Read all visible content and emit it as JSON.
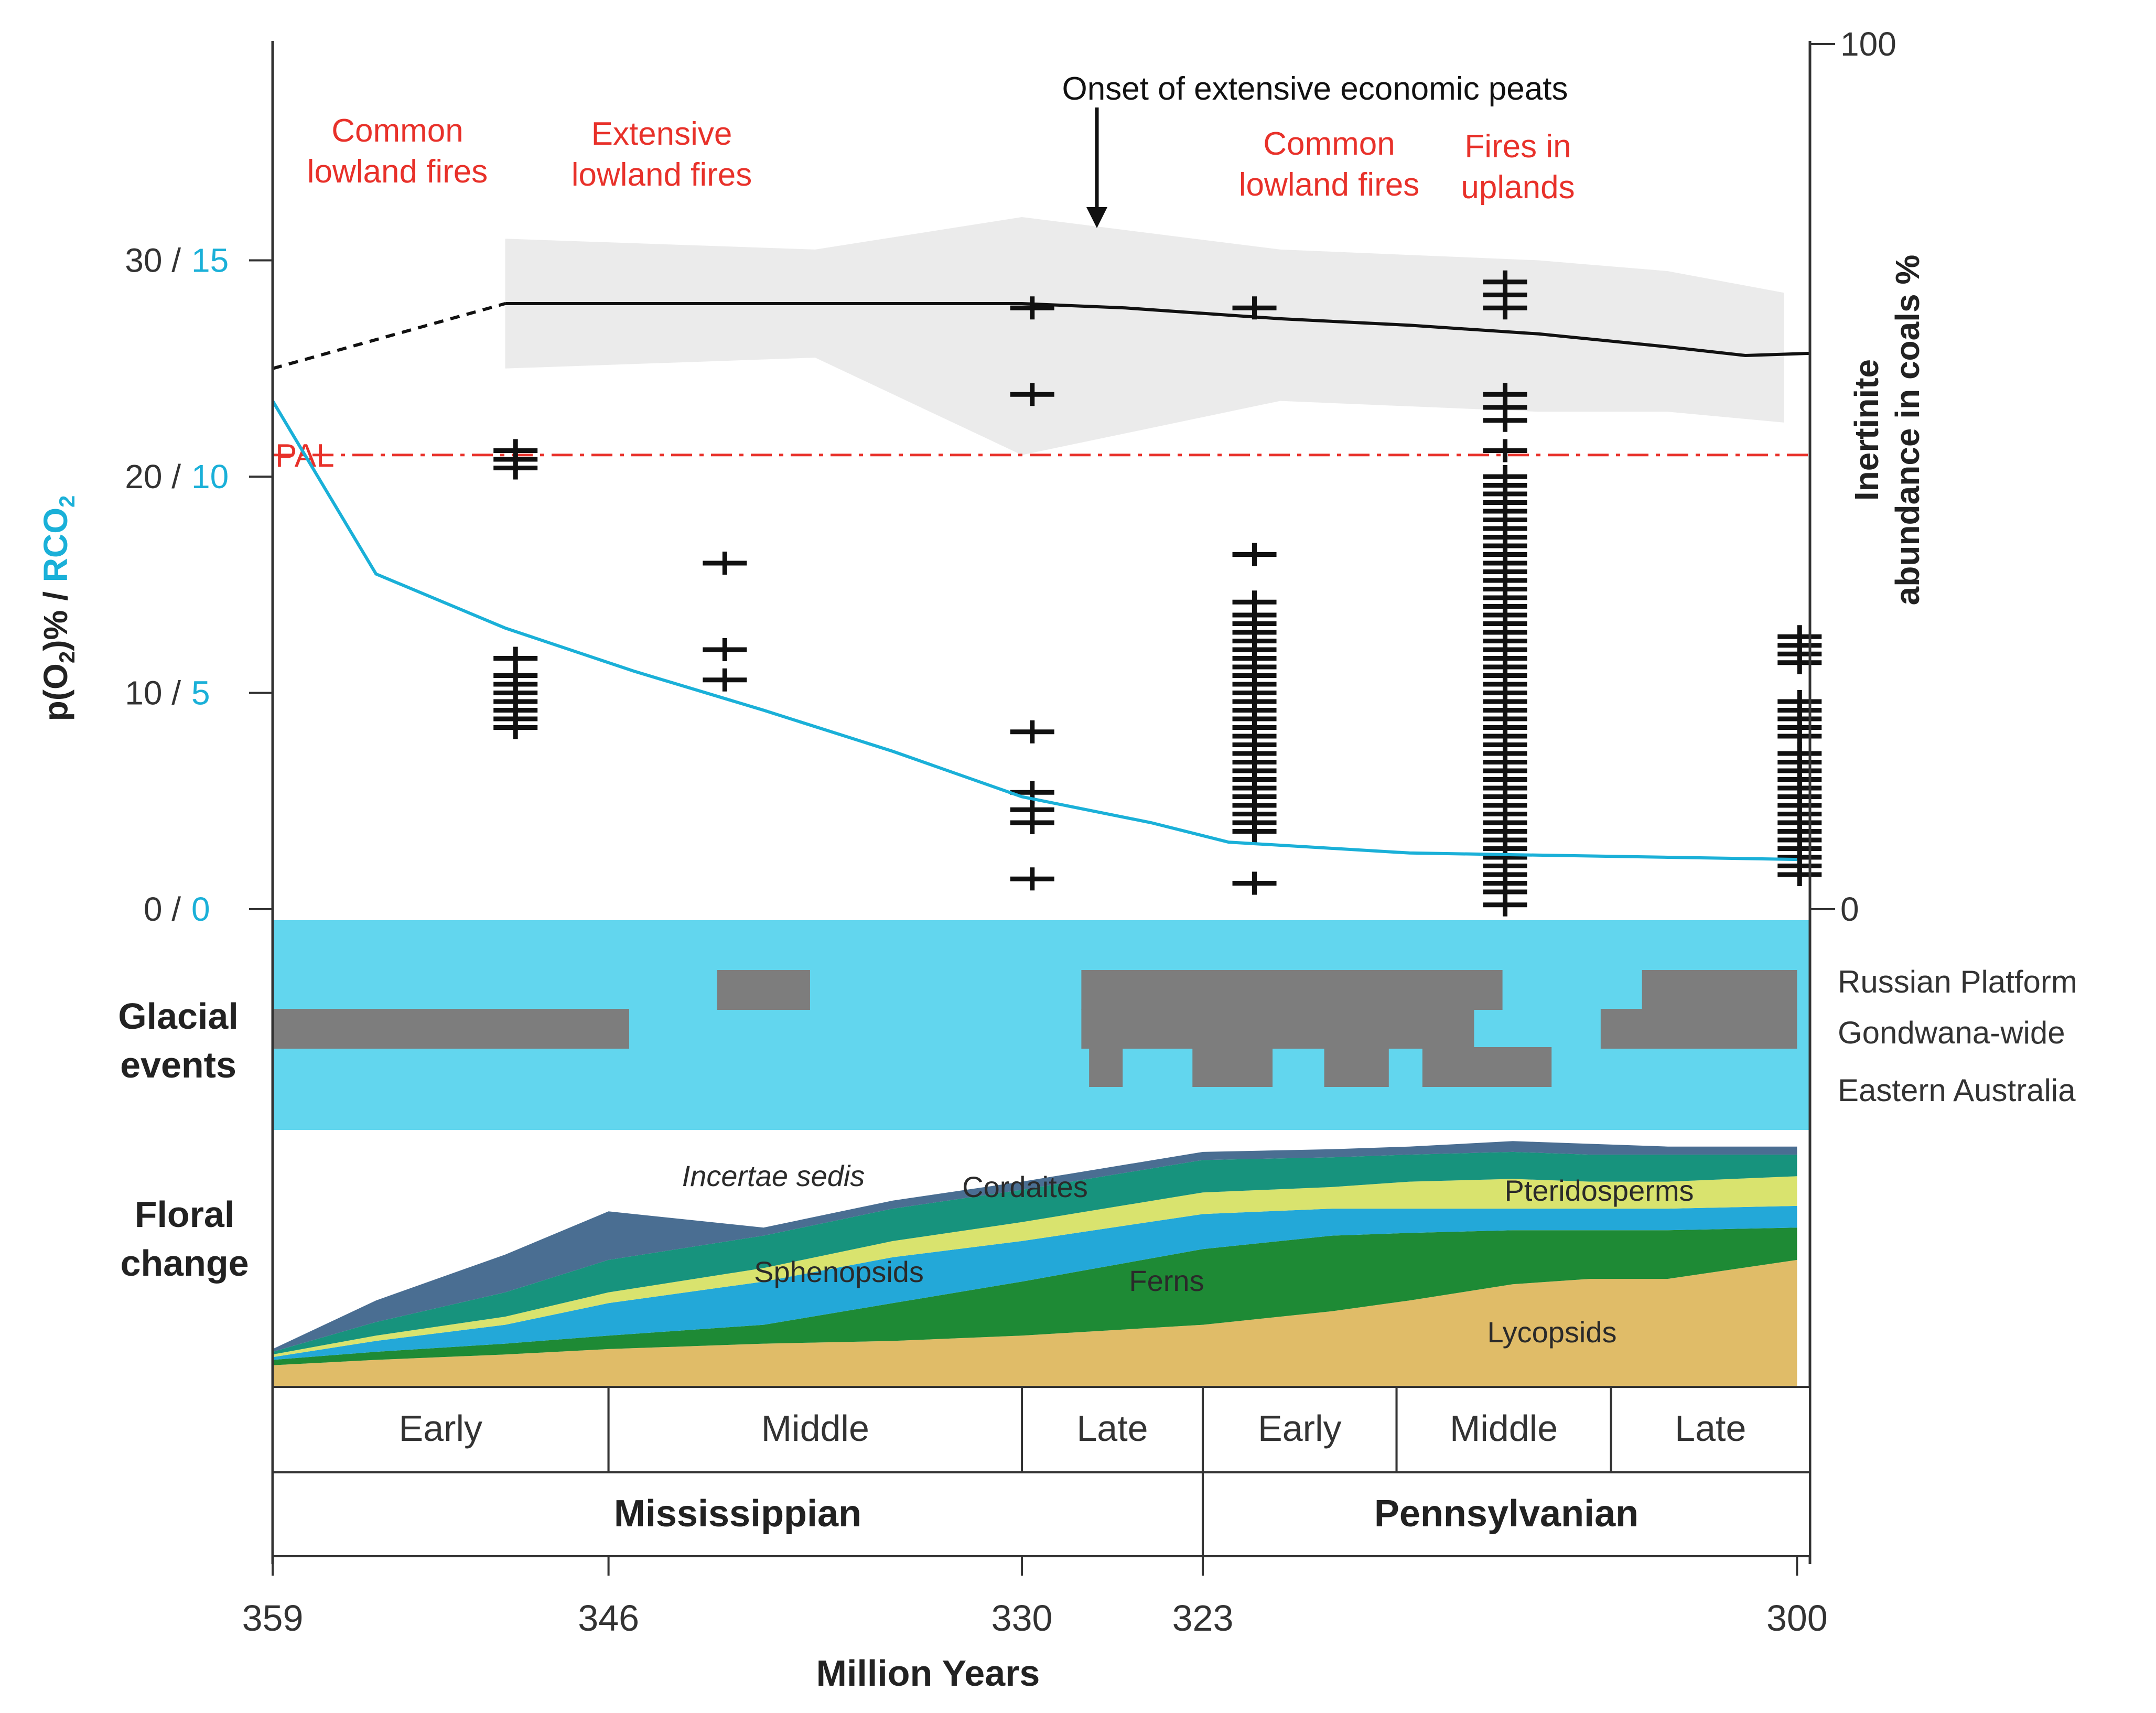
{
  "chart_data": {
    "type": "line",
    "xlabel": "Million Years",
    "x_ticks": [
      359,
      346,
      330,
      323,
      300
    ],
    "x_tick_labels": [
      "359",
      "346",
      "330",
      "323",
      "300"
    ],
    "xlim": [
      359,
      299.5
    ],
    "left_axis": {
      "label_main": "p(O",
      "label_main_sub": "2",
      "label_mid": ")% / ",
      "label_co2": "RCO",
      "label_co2_sub": "2",
      "ylim": [
        0,
        40
      ],
      "ticks": [
        {
          "o2": "0 /",
          "co2": "0",
          "value": 0
        },
        {
          "o2": "10 /",
          "co2": "5",
          "value": 10
        },
        {
          "o2": "20 /",
          "co2": "10",
          "value": 20
        },
        {
          "o2": "30 /",
          "co2": "15",
          "value": 30
        }
      ]
    },
    "right_axis": {
      "label_line1": "Inertinite",
      "label_line2": "abundance in coals %",
      "ylim": [
        0,
        100
      ],
      "ticks": [
        {
          "label": "0",
          "value": 0
        },
        {
          "label": "100",
          "value": 100
        }
      ]
    },
    "colors": {
      "o2": "#111111",
      "o2_band": "#ebebeb",
      "co2": "#1ab0d8",
      "pal": "#e8312a",
      "fire_text": "#e8312a",
      "glacial_bg": "#62d6ee",
      "glacial_bar": "#7d7d7d",
      "inertinite": "#111111"
    },
    "pal": {
      "label": "PAL",
      "value_o2": 21
    },
    "o2_series": {
      "name": "p(O2)%",
      "dashed": {
        "x": [
          359,
          350
        ],
        "y": [
          25,
          28
        ]
      },
      "solid": {
        "x": [
          350,
          340,
          330,
          326,
          320,
          315,
          310,
          305,
          302,
          299.5
        ],
        "y": [
          28,
          28,
          28,
          27.8,
          27.3,
          27,
          26.6,
          26,
          25.6,
          25.7
        ]
      },
      "band_upper": {
        "x": [
          350,
          338,
          330,
          320,
          310,
          305,
          300.5
        ],
        "y": [
          31,
          30.5,
          32,
          30.5,
          30,
          29.5,
          28.5
        ]
      },
      "band_lower": {
        "x": [
          300.5,
          305,
          310,
          320,
          330,
          338,
          350
        ],
        "y": [
          22.5,
          23,
          23,
          23.5,
          21,
          25.5,
          25
        ]
      }
    },
    "co2_series": {
      "name": "RCO2",
      "x": [
        359,
        355,
        350,
        345,
        340,
        335,
        330,
        325,
        322,
        315,
        310,
        305,
        300
      ],
      "y": [
        23.5,
        15.5,
        13,
        11,
        9.2,
        7.3,
        5.2,
        4,
        3.1,
        2.6,
        2.5,
        2.4,
        2.3
      ]
    },
    "inertinite_series": {
      "name": "Inertinite abundance in coals %",
      "columns": [
        {
          "x": 349.6,
          "values": [
            51,
            52,
            53,
            29,
            27,
            26,
            25,
            24,
            23,
            22,
            21
          ]
        },
        {
          "x": 341.5,
          "values": [
            40,
            30,
            26.5
          ]
        },
        {
          "x": 329.6,
          "values": [
            69.5,
            59.5,
            20.5,
            13.5,
            11.5,
            10,
            3.5
          ]
        },
        {
          "x": 321.0,
          "values": [
            69.5,
            41,
            35.5,
            34,
            33,
            32,
            31,
            30,
            29,
            28,
            27,
            26,
            25,
            24,
            23,
            22,
            21,
            20,
            19,
            18,
            17,
            16,
            15,
            14,
            13,
            12,
            11,
            10,
            9,
            3
          ]
        },
        {
          "x": 311.3,
          "values": [
            72.5,
            71,
            69.5,
            59.5,
            58,
            56.5,
            53,
            50,
            49,
            48,
            47,
            46,
            45,
            44,
            43,
            42,
            41,
            40,
            39,
            38,
            37,
            36,
            35,
            34,
            33,
            32,
            31,
            30,
            29,
            28,
            27,
            26,
            25,
            24,
            23,
            22,
            21,
            20,
            19,
            18,
            17,
            16,
            15,
            14,
            13,
            12,
            11,
            10,
            9,
            8,
            7,
            6,
            5,
            4,
            3,
            2,
            0.5
          ]
        },
        {
          "x": 299.9,
          "values": [
            31.5,
            30.5,
            29.5,
            28.5,
            24,
            23,
            22,
            21,
            20,
            18,
            17,
            16,
            15,
            14,
            13,
            12,
            11,
            10,
            9,
            8,
            7,
            6,
            5,
            4
          ]
        }
      ]
    },
    "annotations": [
      {
        "key": "fires1",
        "lines": [
          "Common",
          "lowland fires"
        ],
        "color": "red"
      },
      {
        "key": "fires2",
        "lines": [
          "Extensive",
          "lowland fires"
        ],
        "color": "red"
      },
      {
        "key": "peats",
        "lines": [
          "Onset of extensive economic peats"
        ],
        "color": "black",
        "arrow_x": 327.5
      },
      {
        "key": "fires3",
        "lines": [
          "Common",
          "lowland fires"
        ],
        "color": "red"
      },
      {
        "key": "fires4",
        "lines": [
          "Fires in",
          "uplands"
        ],
        "color": "red"
      }
    ],
    "glacial": {
      "title_line1": "Glacial",
      "title_line2": "events",
      "rows": [
        "Russian Platform",
        "Gondwana-wide",
        "Eastern Australia"
      ],
      "bars": [
        {
          "row": "Russian Platform",
          "from": 341.8,
          "to": 338.2
        },
        {
          "row": "Russian Platform",
          "from": 327.7,
          "to": 311.4
        },
        {
          "row": "Russian Platform",
          "from": 306.0,
          "to": 300.0
        },
        {
          "row": "Gondwana-wide",
          "from": 359.0,
          "to": 345.2
        },
        {
          "row": "Gondwana-wide",
          "from": 327.7,
          "to": 312.5
        },
        {
          "row": "Gondwana-wide",
          "from": 307.6,
          "to": 300.0
        },
        {
          "row": "Eastern Australia",
          "from": 327.4,
          "to": 326.1
        },
        {
          "row": "Eastern Australia",
          "from": 323.4,
          "to": 320.3
        },
        {
          "row": "Eastern Australia",
          "from": 318.3,
          "to": 315.8
        },
        {
          "row": "Eastern Australia",
          "from": 314.5,
          "to": 309.5
        }
      ]
    },
    "floral": {
      "title_line1": "Floral",
      "title_line2": "change",
      "x": [
        359,
        355,
        350,
        346,
        340,
        335,
        330,
        323,
        318,
        315,
        311,
        308,
        305,
        300
      ],
      "layers": [
        {
          "name": "Lycopsids",
          "color": "#e0bc68",
          "italic": false,
          "values": [
            8,
            10,
            12,
            14,
            16,
            17,
            19,
            23,
            28,
            32,
            38,
            40,
            40,
            47
          ]
        },
        {
          "name": "Ferns",
          "color": "#1e8a35",
          "italic": false,
          "values": [
            2,
            3,
            4,
            5,
            7,
            14,
            20,
            28,
            28,
            25,
            20,
            18,
            18,
            12
          ]
        },
        {
          "name": "Sphenopsids",
          "color": "#23a8d8",
          "italic": false,
          "values": [
            1,
            4,
            7,
            12,
            16,
            17,
            15,
            13,
            10,
            9,
            8,
            8,
            8,
            8
          ]
        },
        {
          "name": "Pteridosperms",
          "color": "#d9e36e",
          "italic": false,
          "values": [
            1,
            2,
            3,
            4,
            5,
            6,
            7,
            8,
            8,
            10,
            11,
            10,
            10,
            11
          ]
        },
        {
          "name": "Cordaites",
          "color": "#17937d",
          "italic": false,
          "values": [
            1,
            5,
            9,
            12,
            12,
            12,
            12,
            12,
            11,
            10,
            10,
            10,
            10,
            8
          ]
        },
        {
          "name": "Incertae sedis",
          "color": "#4a6e92",
          "italic": true,
          "values": [
            1,
            8,
            14,
            18,
            3,
            3,
            3,
            3,
            3,
            3,
            4,
            4,
            3,
            3
          ]
        }
      ],
      "max": 100
    },
    "epochs": [
      {
        "label": "Early",
        "from": 359,
        "to": 346
      },
      {
        "label": "Middle",
        "from": 346,
        "to": 330
      },
      {
        "label": "Late",
        "from": 330,
        "to": 323
      },
      {
        "label": "Early",
        "from": 323,
        "to": 315.5
      },
      {
        "label": "Middle",
        "from": 315.5,
        "to": 307.2
      },
      {
        "label": "Late",
        "from": 307.2,
        "to": 299.2
      }
    ],
    "periods": [
      {
        "label": "Mississippian",
        "from": 359,
        "to": 323
      },
      {
        "label": "Pennsylvanian",
        "from": 323,
        "to": 299.2
      }
    ]
  }
}
